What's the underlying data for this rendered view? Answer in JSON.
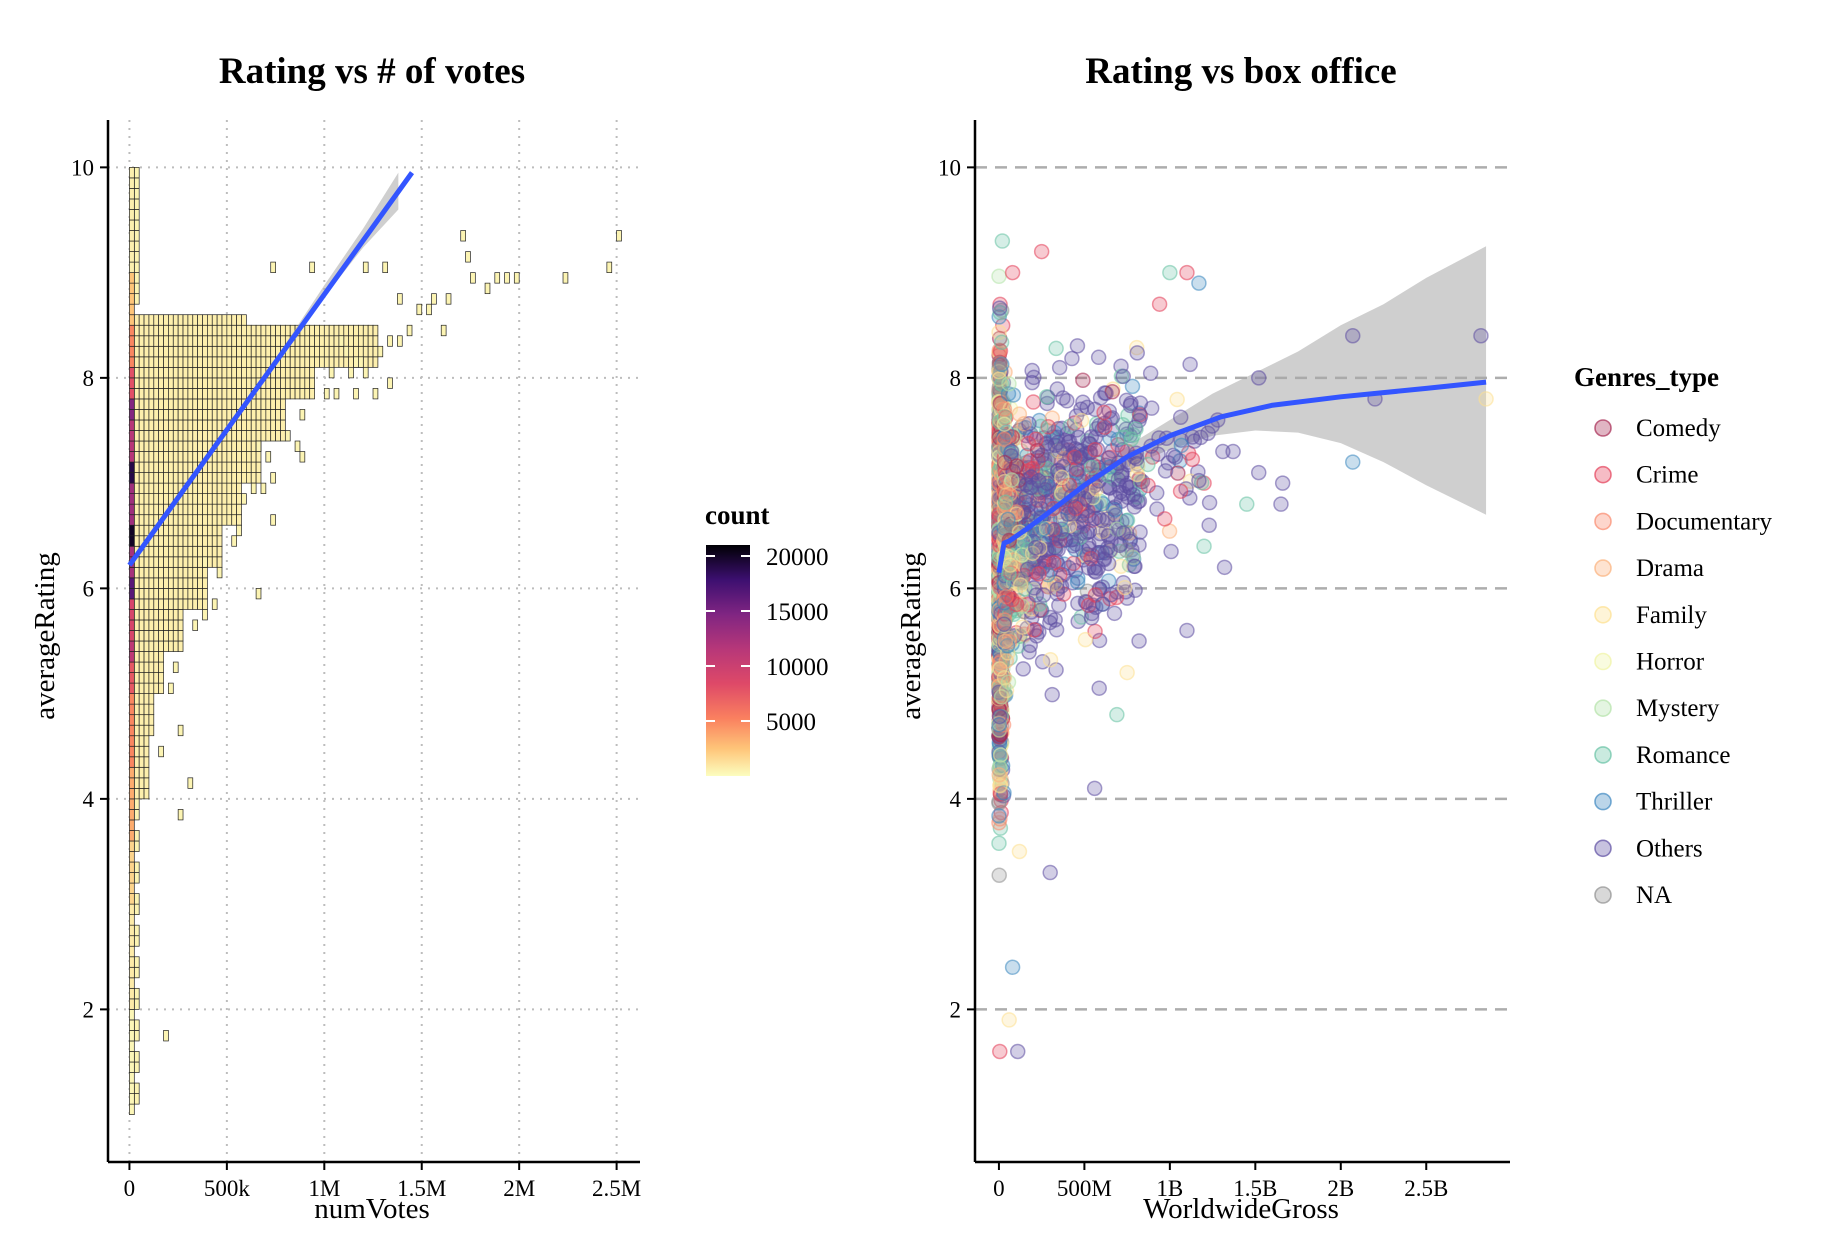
{
  "chart_data": [
    {
      "type": "heatmap",
      "title": "Rating vs # of votes",
      "xlabel": "numVotes",
      "ylabel": "averageRating",
      "xlim": [
        -110000,
        2620000
      ],
      "ylim": [
        0.55,
        10.45
      ],
      "x_ticks": [
        0,
        500000,
        1000000,
        1500000,
        2000000,
        2500000
      ],
      "x_tick_labels": [
        "0",
        "500k",
        "1M",
        "1.5M",
        "2M",
        "2.5M"
      ],
      "y_ticks": [
        2,
        4,
        6,
        8,
        10
      ],
      "y_tick_labels": [
        "2",
        "4",
        "6",
        "8",
        "10"
      ],
      "grid": "dotted",
      "legend": {
        "title": "count",
        "position": "right",
        "scale": "magma (reversed)",
        "range": [
          0,
          21000
        ],
        "ticks": [
          5000,
          10000,
          15000,
          20000
        ],
        "tick_labels": [
          "5000",
          "10000",
          "15000",
          "20000"
        ]
      },
      "bin_width": [
        25000,
        0.1
      ],
      "first_column_bins": [
        {
          "y_from": 1.0,
          "y_to": 2.0,
          "count": 300
        },
        {
          "y_from": 2.0,
          "y_to": 3.0,
          "count": 800
        },
        {
          "y_from": 3.0,
          "y_to": 3.6,
          "count": 1800
        },
        {
          "y_from": 3.6,
          "y_to": 4.3,
          "count": 3500
        },
        {
          "y_from": 4.3,
          "y_to": 5.0,
          "count": 5000
        },
        {
          "y_from": 5.0,
          "y_to": 5.3,
          "count": 7500
        },
        {
          "y_from": 5.3,
          "y_to": 5.5,
          "count": 11000
        },
        {
          "y_from": 5.5,
          "y_to": 5.9,
          "count": 9000
        },
        {
          "y_from": 5.9,
          "y_to": 6.1,
          "count": 16500
        },
        {
          "y_from": 6.1,
          "y_to": 6.4,
          "count": 12500
        },
        {
          "y_from": 6.4,
          "y_to": 6.6,
          "count": 20000
        },
        {
          "y_from": 6.6,
          "y_to": 7.0,
          "count": 13000
        },
        {
          "y_from": 7.0,
          "y_to": 7.2,
          "count": 19000
        },
        {
          "y_from": 7.2,
          "y_to": 7.6,
          "count": 11500
        },
        {
          "y_from": 7.6,
          "y_to": 7.8,
          "count": 14500
        },
        {
          "y_from": 7.8,
          "y_to": 8.1,
          "count": 8000
        },
        {
          "y_from": 8.1,
          "y_to": 8.5,
          "count": 5000
        },
        {
          "y_from": 8.5,
          "y_to": 9.0,
          "count": 2500
        },
        {
          "y_from": 9.0,
          "y_to": 10.0,
          "count": 600
        }
      ],
      "body_envelope": [
        {
          "y_from": 4.0,
          "y_to": 4.6,
          "x_max": 75000
        },
        {
          "y_from": 4.6,
          "y_to": 5.0,
          "x_max": 100000
        },
        {
          "y_from": 5.0,
          "y_to": 5.4,
          "x_max": 150000
        },
        {
          "y_from": 5.4,
          "y_to": 5.8,
          "x_max": 250000
        },
        {
          "y_from": 5.8,
          "y_to": 6.2,
          "x_max": 375000
        },
        {
          "y_from": 6.2,
          "y_to": 6.6,
          "x_max": 450000
        },
        {
          "y_from": 6.6,
          "y_to": 7.0,
          "x_max": 550000
        },
        {
          "y_from": 7.0,
          "y_to": 7.4,
          "x_max": 650000
        },
        {
          "y_from": 7.4,
          "y_to": 7.8,
          "x_max": 775000
        },
        {
          "y_from": 7.8,
          "y_to": 8.1,
          "x_max": 925000
        },
        {
          "y_from": 8.1,
          "y_to": 8.5,
          "x_max": 1250000
        },
        {
          "y_from": 8.5,
          "y_to": 8.6,
          "x_max": 575000
        }
      ],
      "sparse_tiles": [
        [
          1700000,
          9.3
        ],
        [
          2500000,
          9.3
        ],
        [
          1725000,
          9.1
        ],
        [
          925000,
          9.0
        ],
        [
          725000,
          9.0
        ],
        [
          1200000,
          9.0
        ],
        [
          1300000,
          9.0
        ],
        [
          1750000,
          8.9
        ],
        [
          1875000,
          8.9
        ],
        [
          1925000,
          8.9
        ],
        [
          1975000,
          8.9
        ],
        [
          2225000,
          8.9
        ],
        [
          2450000,
          9.0
        ],
        [
          1825000,
          8.8
        ],
        [
          1550000,
          8.7
        ],
        [
          1625000,
          8.7
        ],
        [
          1375000,
          8.7
        ],
        [
          1475000,
          8.6
        ],
        [
          1525000,
          8.6
        ],
        [
          1600000,
          8.4
        ],
        [
          1425000,
          8.4
        ],
        [
          1375000,
          8.3
        ],
        [
          1325000,
          8.3
        ],
        [
          1075000,
          8.3
        ],
        [
          1100000,
          8.2
        ],
        [
          1150000,
          8.1
        ],
        [
          1175000,
          8.1
        ],
        [
          1125000,
          8.0
        ],
        [
          1200000,
          8.0
        ],
        [
          1275000,
          8.2
        ],
        [
          1025000,
          8.0
        ],
        [
          1325000,
          7.9
        ],
        [
          1150000,
          7.8
        ],
        [
          1250000,
          7.8
        ],
        [
          1050000,
          7.8
        ],
        [
          1000000,
          7.8
        ],
        [
          875000,
          7.6
        ],
        [
          800000,
          7.4
        ],
        [
          850000,
          7.3
        ],
        [
          875000,
          7.2
        ],
        [
          650000,
          7.3
        ],
        [
          700000,
          7.2
        ],
        [
          725000,
          7.0
        ],
        [
          625000,
          6.9
        ],
        [
          675000,
          6.9
        ],
        [
          575000,
          6.8
        ],
        [
          725000,
          6.6
        ],
        [
          550000,
          6.5
        ],
        [
          525000,
          6.4
        ],
        [
          375000,
          6.2
        ],
        [
          450000,
          6.1
        ],
        [
          650000,
          5.9
        ],
        [
          425000,
          5.8
        ],
        [
          375000,
          5.7
        ],
        [
          325000,
          5.6
        ],
        [
          225000,
          5.2
        ],
        [
          200000,
          5.0
        ],
        [
          250000,
          4.6
        ],
        [
          300000,
          4.1
        ],
        [
          150000,
          4.4
        ],
        [
          250000,
          3.8
        ],
        [
          175000,
          1.7
        ]
      ],
      "trend_line": {
        "method": "lm",
        "color": "#3355ff",
        "points": [
          [
            0,
            6.22
          ],
          [
            1450000,
            9.95
          ]
        ],
        "ci_band": [
          [
            800000,
            8.28,
            8.32
          ],
          [
            1000000,
            8.77,
            8.88
          ],
          [
            1200000,
            9.24,
            9.42
          ],
          [
            1380000,
            9.6,
            9.95
          ]
        ]
      }
    },
    {
      "type": "scatter",
      "title": "Rating vs box office",
      "xlabel": "WorldwideGross",
      "ylabel": "averageRating",
      "xlim": [
        -140000000,
        2990000000
      ],
      "ylim": [
        0.55,
        10.45
      ],
      "x_ticks": [
        0,
        500000000,
        1000000000,
        1500000000,
        2000000000,
        2500000000
      ],
      "x_tick_labels": [
        "0",
        "500M",
        "1B",
        "1.5B",
        "2B",
        "2.5B"
      ],
      "y_ticks": [
        2,
        4,
        6,
        8,
        10
      ],
      "y_tick_labels": [
        "2",
        "4",
        "6",
        "8",
        "10"
      ],
      "grid": "dashed",
      "legend": {
        "title": "Genres_type",
        "position": "right"
      },
      "series": [
        {
          "name": "Comedy",
          "color": "#a62a52"
        },
        {
          "name": "Crime",
          "color": "#e4405a"
        },
        {
          "name": "Documentary",
          "color": "#f98a6d"
        },
        {
          "name": "Drama",
          "color": "#fbb07a"
        },
        {
          "name": "Family",
          "color": "#fde08f"
        },
        {
          "name": "Horror",
          "color": "#eff3a3"
        },
        {
          "name": "Mystery",
          "color": "#b3e3a8"
        },
        {
          "name": "Romance",
          "color": "#67c2a4"
        },
        {
          "name": "Thriller",
          "color": "#3d88c0"
        },
        {
          "name": "Others",
          "color": "#5e4fa3"
        },
        {
          "name": "NA",
          "color": "#8f8f8f"
        }
      ],
      "notable_points": [
        [
          2820000000,
          8.4
        ],
        [
          2850000000,
          7.8
        ],
        [
          2070000000,
          8.4
        ],
        [
          2200000000,
          7.8
        ],
        [
          2070000000,
          7.2
        ],
        [
          1520000000,
          8.0
        ],
        [
          1660000000,
          7.0
        ],
        [
          1650000000,
          6.8
        ],
        [
          1520000000,
          7.1
        ],
        [
          1450000000,
          6.8
        ],
        [
          1370000000,
          7.3
        ],
        [
          1310000000,
          7.3
        ],
        [
          1280000000,
          7.6
        ],
        [
          1230000000,
          6.6
        ],
        [
          1200000000,
          6.4
        ],
        [
          1320000000,
          6.2
        ],
        [
          1170000000,
          8.9
        ],
        [
          1100000000,
          9.0
        ],
        [
          1000000000,
          9.0
        ],
        [
          940000000,
          8.7
        ],
        [
          1100000000,
          5.6
        ],
        [
          820000000,
          5.5
        ],
        [
          750000000,
          5.2
        ],
        [
          690000000,
          4.8
        ],
        [
          560000000,
          4.1
        ],
        [
          300000000,
          3.3
        ],
        [
          120000000,
          3.5
        ],
        [
          80000000,
          2.4
        ],
        [
          110000000,
          1.6
        ],
        [
          5000000,
          1.6
        ],
        [
          60000000,
          1.9
        ],
        [
          250000000,
          9.2
        ],
        [
          20000000,
          9.3
        ],
        [
          80000000,
          9.0
        ]
      ],
      "trend_line": {
        "method": "loess",
        "color": "#3355ff",
        "points": [
          [
            0,
            6.15
          ],
          [
            30000000,
            6.43
          ],
          [
            60000000,
            6.45
          ],
          [
            150000000,
            6.55
          ],
          [
            300000000,
            6.73
          ],
          [
            500000000,
            6.98
          ],
          [
            750000000,
            7.25
          ],
          [
            1000000000,
            7.45
          ],
          [
            1300000000,
            7.63
          ],
          [
            1600000000,
            7.74
          ],
          [
            2000000000,
            7.82
          ],
          [
            2500000000,
            7.9
          ],
          [
            2850000000,
            7.96
          ]
        ],
        "ci_band": [
          [
            0,
            5.95,
            6.35
          ],
          [
            60000000,
            6.37,
            6.53
          ],
          [
            300000000,
            6.65,
            6.8
          ],
          [
            500000000,
            6.9,
            7.05
          ],
          [
            750000000,
            7.15,
            7.35
          ],
          [
            1000000000,
            7.32,
            7.6
          ],
          [
            1250000000,
            7.45,
            7.85
          ],
          [
            1500000000,
            7.5,
            8.05
          ],
          [
            1750000000,
            7.48,
            8.25
          ],
          [
            2000000000,
            7.38,
            8.5
          ],
          [
            2250000000,
            7.2,
            8.7
          ],
          [
            2500000000,
            6.98,
            8.95
          ],
          [
            2850000000,
            6.7,
            9.25
          ]
        ]
      }
    }
  ]
}
